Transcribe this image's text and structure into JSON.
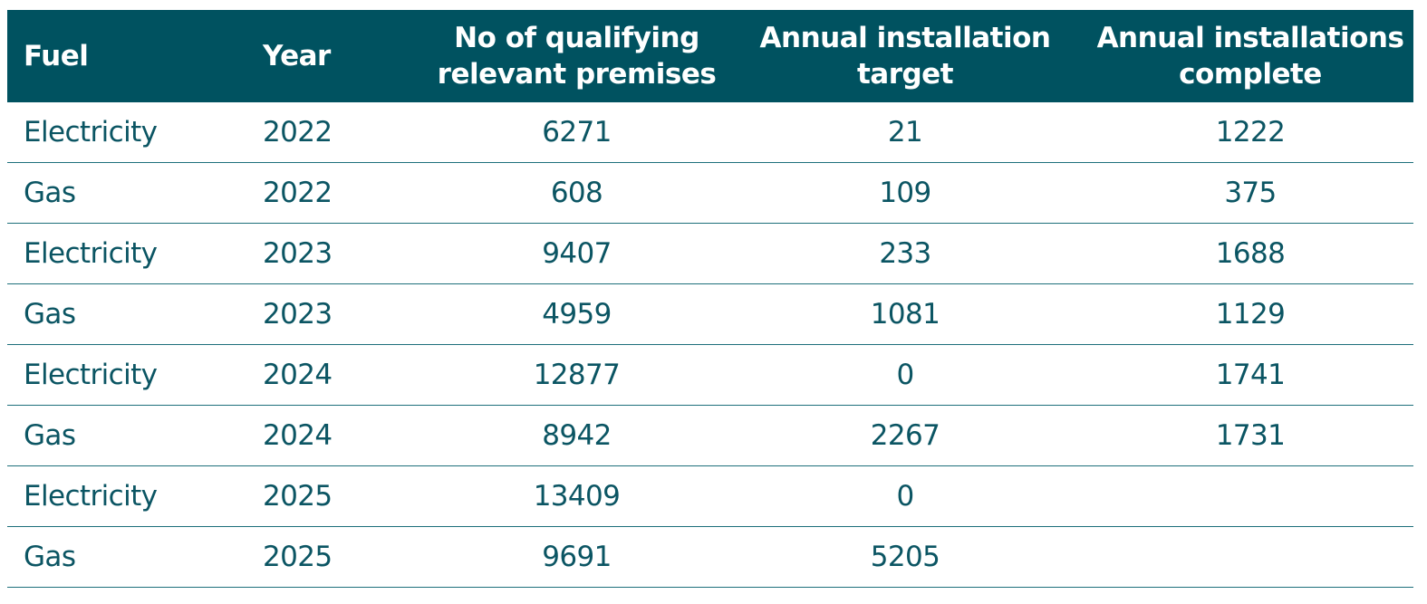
{
  "table": {
    "headers": [
      "Fuel",
      "Year",
      "No of qualifying\nrelevant premises",
      "Annual installation\ntarget",
      "Annual installations\ncomplete"
    ],
    "rows": [
      [
        "Electricity",
        "2022",
        "6271",
        "21",
        "1222"
      ],
      [
        "Gas",
        "2022",
        "608",
        "109",
        "375"
      ],
      [
        "Electricity",
        "2023",
        "9407",
        "233",
        "1688"
      ],
      [
        "Gas",
        "2023",
        "4959",
        "1081",
        "1129"
      ],
      [
        "Electricity",
        "2024",
        "12877",
        "0",
        "1741"
      ],
      [
        "Gas",
        "2024",
        "8942",
        "2267",
        "1731"
      ],
      [
        "Electricity",
        "2025",
        "13409",
        "0",
        ""
      ],
      [
        "Gas",
        "2025",
        "9691",
        "5205",
        ""
      ]
    ]
  },
  "colors": {
    "header_background": "#005260",
    "header_text": "#ffffff",
    "body_text": "#0b5563",
    "row_divider": "#1d6f7b"
  }
}
